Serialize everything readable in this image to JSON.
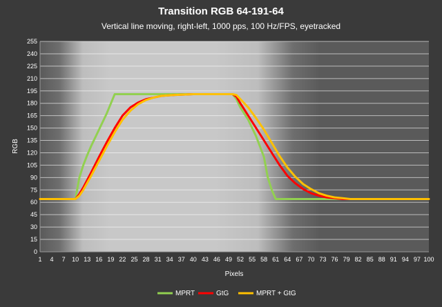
{
  "chart_data": {
    "type": "line",
    "title": "Transition RGB 64-191-64",
    "subtitle": "Vertical line moving, right-left, 1000 pps, 100 Hz/FPS, eyetracked",
    "xlabel": "Pixels",
    "ylabel": "RGB",
    "xlim": [
      1,
      100
    ],
    "ylim": [
      0,
      255
    ],
    "x_ticks": [
      1,
      4,
      7,
      10,
      13,
      16,
      19,
      22,
      25,
      28,
      31,
      34,
      37,
      40,
      43,
      46,
      49,
      52,
      55,
      58,
      61,
      64,
      67,
      70,
      73,
      76,
      79,
      82,
      85,
      88,
      91,
      94,
      97,
      100
    ],
    "y_ticks": [
      0,
      15,
      30,
      45,
      60,
      75,
      90,
      105,
      120,
      135,
      150,
      165,
      180,
      195,
      210,
      225,
      240,
      255
    ],
    "grid": true,
    "legend_position": "bottom",
    "series": [
      {
        "name": "MPRT",
        "color": "#92d050",
        "x": [
          1,
          10,
          11,
          12,
          13,
          14,
          16,
          18,
          20,
          30,
          50,
          51,
          52,
          54,
          56,
          58,
          59,
          60,
          61,
          70,
          80,
          100
        ],
        "y": [
          64,
          64,
          90,
          105,
          117,
          128,
          148,
          168,
          191,
          191,
          191,
          185,
          175,
          160,
          140,
          115,
          90,
          75,
          64,
          64,
          64,
          64
        ]
      },
      {
        "name": "GtG",
        "color": "#ff0000",
        "x": [
          1,
          10,
          11,
          12,
          14,
          16,
          18,
          20,
          22,
          24,
          26,
          28,
          30,
          32,
          35,
          40,
          50,
          51,
          52,
          54,
          56,
          58,
          60,
          62,
          64,
          66,
          68,
          70,
          72,
          74,
          76,
          78,
          80,
          100
        ],
        "y": [
          64,
          64,
          70,
          78,
          96,
          115,
          133,
          150,
          165,
          175,
          181,
          185,
          187,
          189,
          190,
          191,
          191,
          188,
          180,
          165,
          150,
          135,
          120,
          105,
          92,
          83,
          76,
          71,
          68,
          66,
          65,
          64,
          64,
          64
        ]
      },
      {
        "name": "MPRT + GtG",
        "color": "#ffc000",
        "x": [
          1,
          10,
          11,
          12,
          14,
          16,
          18,
          20,
          22,
          24,
          26,
          28,
          30,
          32,
          35,
          40,
          50,
          51,
          52,
          54,
          56,
          58,
          60,
          62,
          64,
          66,
          68,
          70,
          72,
          74,
          76,
          78,
          80,
          100
        ],
        "y": [
          64,
          64,
          68,
          75,
          92,
          110,
          128,
          145,
          160,
          171,
          179,
          184,
          187,
          189,
          190,
          191,
          191,
          190,
          185,
          175,
          162,
          148,
          132,
          116,
          102,
          91,
          82,
          76,
          71,
          68,
          66,
          65,
          64,
          64
        ]
      }
    ]
  }
}
